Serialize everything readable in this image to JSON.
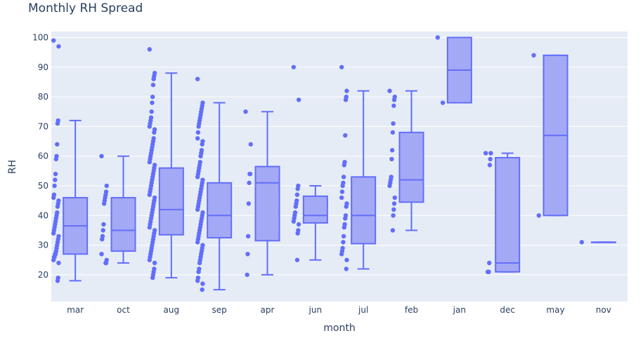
{
  "chart_data": {
    "type": "box",
    "title": "Monthly RH Spread",
    "xlabel": "month",
    "ylabel": "RH",
    "ylim": [
      11,
      102
    ],
    "yticks": [
      20,
      30,
      40,
      50,
      60,
      70,
      80,
      90,
      100
    ],
    "colors": {
      "plot_bg": "#e5ecf6",
      "grid": "#ffffff",
      "box_line": "#636efa",
      "box_fill": "#a4a9f5",
      "point": "#636efa",
      "text": "#2a3f5f"
    },
    "series": [
      {
        "name": "mar",
        "box": {
          "min": 18,
          "q1": 27,
          "median": 36.5,
          "q3": 46,
          "max": 72
        },
        "points": [
          99,
          97,
          72,
          71,
          64,
          60,
          59,
          54,
          52,
          50,
          47,
          46,
          45,
          44,
          43,
          41,
          40,
          39,
          38,
          37,
          36,
          35,
          34,
          33,
          32,
          31,
          30,
          29,
          28,
          27,
          27,
          26,
          26,
          25,
          24,
          19,
          18
        ]
      },
      {
        "name": "oct",
        "box": {
          "min": 24,
          "q1": 28,
          "median": 35,
          "q3": 46,
          "max": 60
        },
        "points": [
          60,
          50,
          48,
          47,
          46,
          45,
          44,
          37,
          35,
          33,
          32,
          27,
          25,
          24,
          24
        ]
      },
      {
        "name": "aug",
        "box": {
          "min": 19,
          "q1": 33.5,
          "median": 42,
          "q3": 56,
          "max": 88
        },
        "points": [
          96,
          88,
          87,
          86,
          84,
          80,
          78,
          75,
          73,
          72,
          71,
          70,
          69,
          68,
          66,
          65,
          64,
          63,
          62,
          61,
          60,
          59,
          58,
          57,
          56,
          55,
          54,
          53,
          52,
          51,
          50,
          49,
          48,
          47,
          46,
          45,
          44,
          43,
          42,
          41,
          40,
          39,
          38,
          37,
          36,
          35,
          34,
          33,
          32,
          31,
          30,
          29,
          28,
          27,
          26,
          25,
          24,
          22,
          21,
          20,
          19
        ]
      },
      {
        "name": "sep",
        "box": {
          "min": 15,
          "q1": 32.5,
          "median": 40,
          "q3": 51,
          "max": 78
        },
        "points": [
          86,
          78,
          77,
          76,
          75,
          74,
          73,
          72,
          71,
          70,
          68,
          66,
          65,
          64,
          62,
          61,
          60,
          58,
          57,
          56,
          55,
          54,
          53,
          52,
          51,
          50,
          49,
          48,
          47,
          46,
          45,
          44,
          43,
          42,
          41,
          40,
          39,
          38,
          37,
          36,
          35,
          34,
          33,
          32,
          31,
          30,
          29,
          28,
          27,
          26,
          25,
          24,
          22,
          21,
          19,
          18,
          17,
          15
        ]
      },
      {
        "name": "apr",
        "box": {
          "min": 20,
          "q1": 31.5,
          "median": 51,
          "q3": 56.5,
          "max": 75
        },
        "points": [
          75,
          64,
          54,
          54,
          51,
          44,
          33,
          27,
          20
        ]
      },
      {
        "name": "jun",
        "box": {
          "min": 25,
          "q1": 37.5,
          "median": 40,
          "q3": 46.5,
          "max": 50
        },
        "points": [
          90,
          79,
          50,
          49,
          47,
          45,
          44,
          43,
          41,
          40,
          39,
          38,
          37,
          35,
          34,
          25
        ]
      },
      {
        "name": "jul",
        "box": {
          "min": 22,
          "q1": 30.5,
          "median": 40,
          "q3": 53,
          "max": 82
        },
        "points": [
          90,
          82,
          80,
          79,
          67,
          58,
          57,
          53,
          51,
          50,
          48,
          46,
          44,
          43,
          40,
          39,
          37,
          36,
          33,
          31,
          29,
          28,
          27,
          25,
          22
        ]
      },
      {
        "name": "feb",
        "box": {
          "min": 35,
          "q1": 44.5,
          "median": 52,
          "q3": 68,
          "max": 82
        },
        "points": [
          82,
          80,
          79,
          77,
          71,
          68,
          62,
          59,
          53,
          52,
          51,
          50,
          46,
          44,
          42,
          40,
          35
        ]
      },
      {
        "name": "jan",
        "box": {
          "min": 78,
          "q1": 78,
          "median": 89,
          "q3": 100,
          "max": 100
        },
        "points": [
          100,
          78
        ]
      },
      {
        "name": "dec",
        "box": {
          "min": 21,
          "q1": 21,
          "median": 24,
          "q3": 59.5,
          "max": 61
        },
        "points": [
          61,
          61,
          59,
          57,
          24,
          21,
          21,
          21
        ]
      },
      {
        "name": "may",
        "box": {
          "min": 40,
          "q1": 40,
          "median": 67,
          "q3": 94,
          "max": 94
        },
        "points": [
          94,
          40
        ]
      },
      {
        "name": "nov",
        "box": {
          "min": 31,
          "q1": 31,
          "median": 31,
          "q3": 31,
          "max": 31
        },
        "points": [
          31
        ]
      }
    ]
  }
}
